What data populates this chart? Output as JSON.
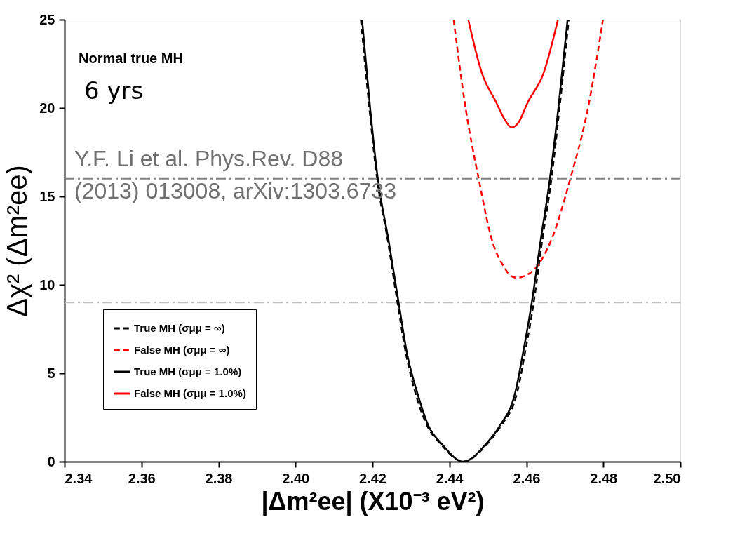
{
  "chart_data": {
    "type": "line",
    "xlabel": "|Δm²ee| (X10⁻³ eV²)",
    "ylabel": "Δχ² (Δm²ee)",
    "xlim": [
      2.34,
      2.5
    ],
    "xticks": [
      2.34,
      2.36,
      2.38,
      {
        "value": 2.4,
        "label": "2.40"
      },
      2.42,
      2.44,
      2.46,
      2.48,
      {
        "value": 2.5,
        "label": "2.50"
      }
    ],
    "ylim": [
      0,
      25
    ],
    "yticks": [
      0,
      5,
      10,
      15,
      20,
      25
    ],
    "grid": false,
    "legend": "bottom left",
    "marker": "none",
    "annotations": [
      "Normal true MH",
      "6 yrs",
      "Y.F. Li et al. Phys.Rev. D88\n(2013) 013008, arXiv:1303.6733"
    ],
    "ref_lines": [
      {
        "axis": "y",
        "value": 16,
        "color": "#808080",
        "line_style": "dashed"
      },
      {
        "axis": "y",
        "value": 9,
        "color": "#c0c0c0",
        "line_style": "dashed"
      }
    ],
    "series": [
      {
        "name": "True MH (σμμ = ∞)",
        "color": "#000000",
        "line_style": "dashed",
        "x": [
          2.417,
          2.4192,
          2.4212,
          2.424,
          2.4265,
          2.4288,
          2.431,
          2.4343,
          2.4377,
          2.4436,
          2.4498,
          2.4533,
          2.4577,
          2.4595,
          2.4619,
          2.4641,
          2.4665,
          2.4686,
          2.471
        ],
        "values": [
          25,
          20,
          16,
          12.5,
          9,
          6,
          4,
          2,
          1,
          0,
          1,
          2,
          4,
          6,
          9,
          12.5,
          16,
          20,
          25
        ]
      },
      {
        "name": "False MH (σμμ = ∞)",
        "color": "#ff0000",
        "line_style": "dashed",
        "x": [
          2.4411,
          2.4442,
          2.4476,
          2.4511,
          2.4542,
          2.456,
          2.4576,
          2.4595,
          2.4626,
          2.4664,
          2.4714,
          2.476,
          2.4799
        ],
        "values": [
          25,
          20,
          16,
          12.5,
          11,
          10.5,
          10.4,
          10.5,
          11,
          12.5,
          16,
          20,
          25
        ]
      },
      {
        "name": "True MH (σμμ = 1.0%)",
        "color": "#000000",
        "line_style": "solid",
        "x": [
          2.4173,
          2.4194,
          2.4214,
          2.4242,
          2.4268,
          2.4291,
          2.4315,
          2.4346,
          2.438,
          2.4436,
          2.4495,
          2.453,
          2.4572,
          2.459,
          2.4614,
          2.4637,
          2.4661,
          2.4683,
          2.4707
        ],
        "values": [
          25,
          20,
          16,
          12.5,
          9,
          6,
          4,
          2,
          1,
          0,
          1,
          2,
          4,
          6,
          9,
          12.5,
          16,
          20,
          25
        ]
      },
      {
        "name": "False MH (σμμ = 1.0%)",
        "color": "#ff0000",
        "line_style": "solid",
        "x": [
          2.4449,
          2.4484,
          2.4522,
          2.4545,
          2.4561,
          2.458,
          2.4603,
          2.4645,
          2.4682
        ],
        "values": [
          25,
          22,
          20.3,
          19.3,
          18.9,
          19.2,
          20.3,
          22,
          25
        ]
      }
    ]
  }
}
